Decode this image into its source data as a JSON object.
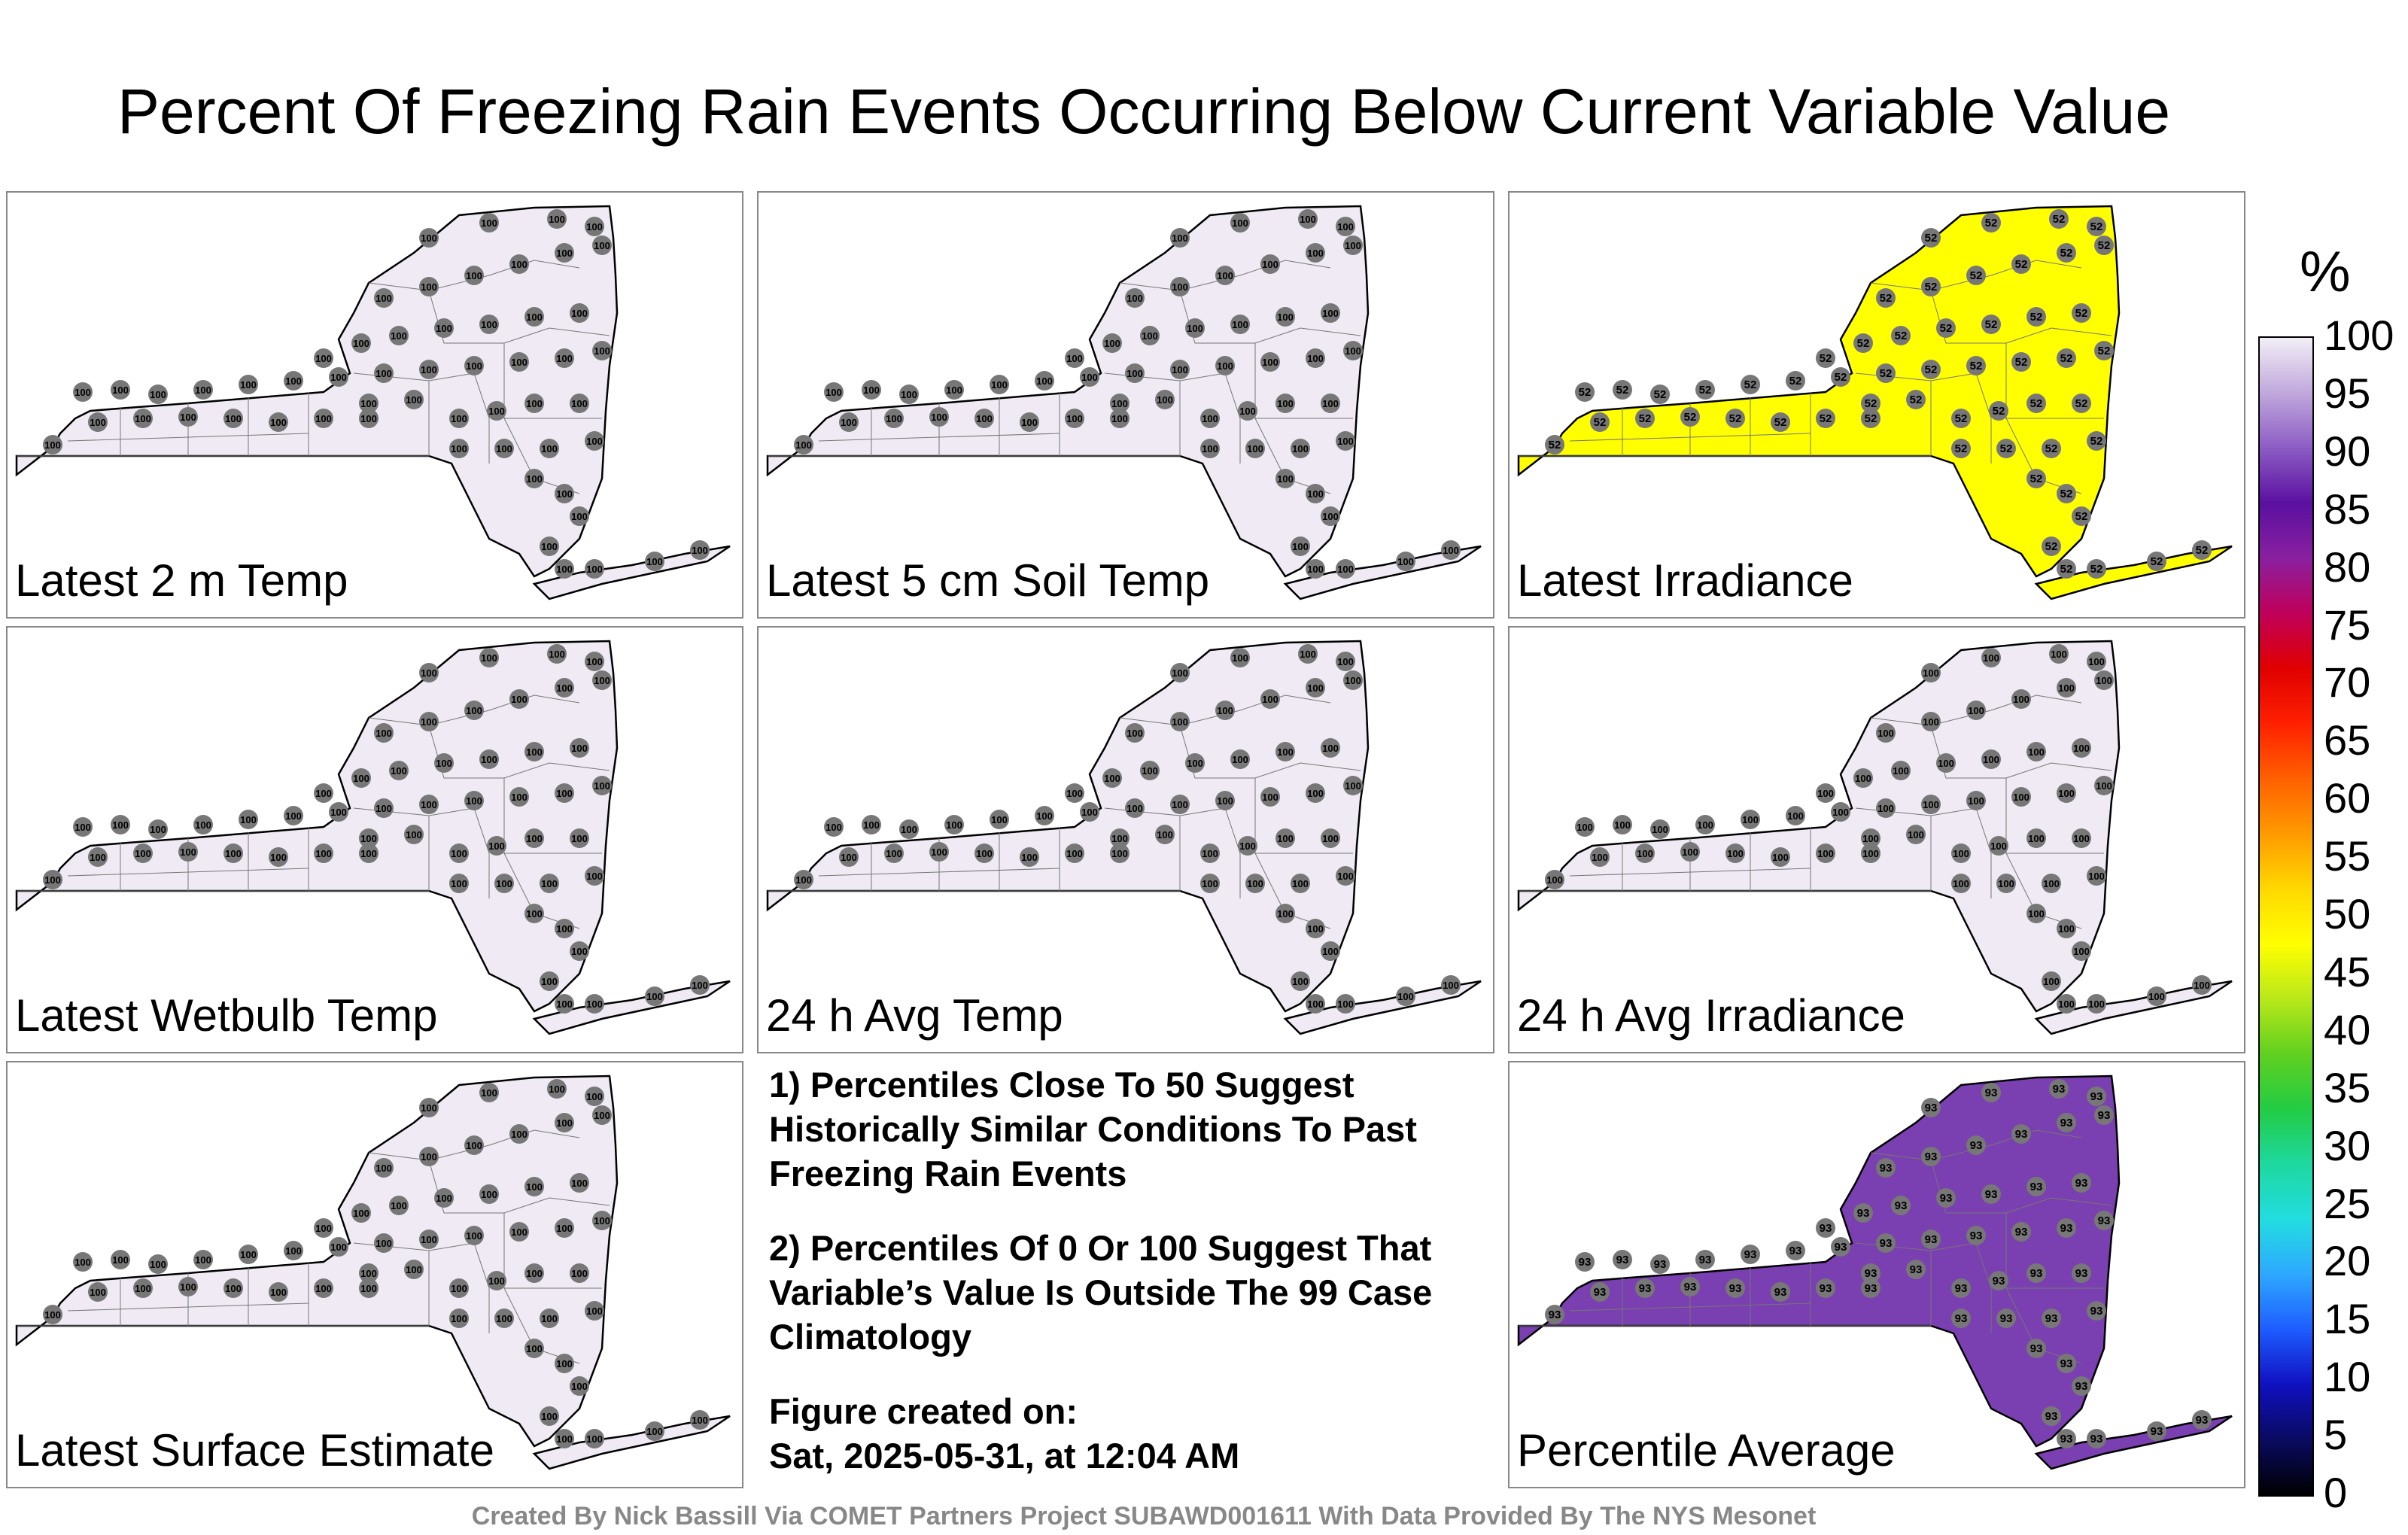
{
  "title": "Percent Of Freezing Rain Events Occurring Below Current Variable Value",
  "colorbar": {
    "unit": "%",
    "labels": [
      "100",
      "95",
      "90",
      "85",
      "80",
      "75",
      "70",
      "65",
      "60",
      "55",
      "50",
      "45",
      "40",
      "35",
      "30",
      "25",
      "20",
      "15",
      "10",
      "5",
      "0"
    ]
  },
  "panels": [
    {
      "label": "Latest 2 m Temp",
      "fill": "#efeaf4",
      "value": "100"
    },
    {
      "label": "Latest 5 cm Soil Temp",
      "fill": "#efeaf4",
      "value": "100"
    },
    {
      "label": "Latest Irradiance",
      "fill": "#ffff00",
      "value": "52"
    },
    {
      "label": "Latest Wetbulb Temp",
      "fill": "#efeaf4",
      "value": "100"
    },
    {
      "label": "24 h Avg Temp",
      "fill": "#efeaf4",
      "value": "100"
    },
    {
      "label": "24 h Avg Irradiance",
      "fill": "#efeaf4",
      "value": "100"
    },
    {
      "label": "Latest Surface Estimate",
      "fill": "#efeaf4",
      "value": "100"
    },
    {
      "label": "Percentile Average",
      "fill": "#7a3fb0",
      "value": "93"
    }
  ],
  "notes": {
    "note1": "1) Percentiles Close To 50 Suggest Historically Similar Conditions To Past Freezing Rain Events",
    "note2": "2) Percentiles Of 0 Or 100 Suggest That Variable’s Value Is Outside The 99 Case Climatology",
    "created_label": "Figure created on:",
    "created_date": "Sat, 2025-05-31, at 12:04 AM"
  },
  "footer": "Created By Nick Bassill Via COMET Partners Project SUBAWD001611 With Data Provided By The NYS Mesonet"
}
